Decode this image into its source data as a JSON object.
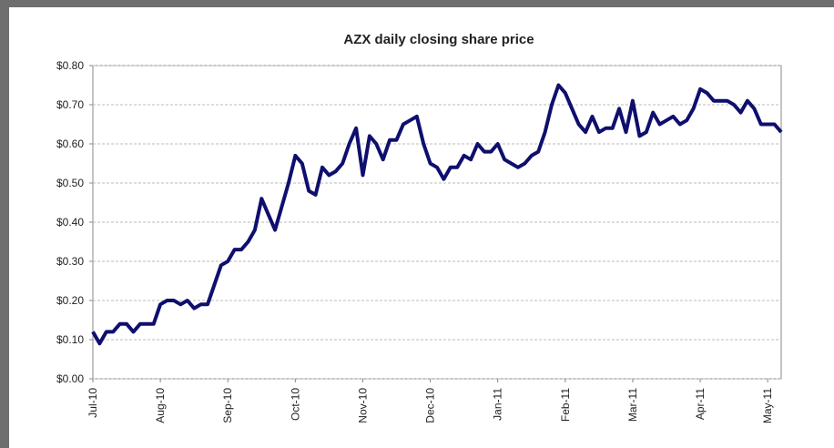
{
  "chart_data": {
    "type": "line",
    "title": "AZX daily closing share price",
    "categories": [
      "Jul-10",
      null,
      null,
      null,
      null,
      null,
      null,
      null,
      null,
      null,
      "Aug-10",
      null,
      null,
      null,
      null,
      null,
      null,
      null,
      null,
      null,
      "Sep-10",
      null,
      null,
      null,
      null,
      null,
      null,
      null,
      null,
      null,
      "Oct-10",
      null,
      null,
      null,
      null,
      null,
      null,
      null,
      null,
      null,
      "Nov-10",
      null,
      null,
      null,
      null,
      null,
      null,
      null,
      null,
      null,
      "Dec-10",
      null,
      null,
      null,
      null,
      null,
      null,
      null,
      null,
      null,
      "Jan-11",
      null,
      null,
      null,
      null,
      null,
      null,
      null,
      null,
      null,
      "Feb-11",
      null,
      null,
      null,
      null,
      null,
      null,
      null,
      null,
      null,
      "Mar-11",
      null,
      null,
      null,
      null,
      null,
      null,
      null,
      null,
      null,
      "Apr-11",
      null,
      null,
      null,
      null,
      null,
      null,
      null,
      null,
      null,
      "May-11",
      null,
      null
    ],
    "series": [
      {
        "name": "AZX",
        "color": "#0f0f6e",
        "values": [
          0.12,
          0.09,
          0.12,
          0.12,
          0.14,
          0.14,
          0.12,
          0.14,
          0.14,
          0.14,
          0.19,
          0.2,
          0.2,
          0.19,
          0.2,
          0.18,
          0.19,
          0.19,
          0.24,
          0.29,
          0.3,
          0.33,
          0.33,
          0.35,
          0.38,
          0.46,
          0.42,
          0.38,
          0.44,
          0.5,
          0.57,
          0.55,
          0.48,
          0.47,
          0.54,
          0.52,
          0.53,
          0.55,
          0.6,
          0.64,
          0.52,
          0.62,
          0.6,
          0.56,
          0.61,
          0.61,
          0.65,
          0.66,
          0.67,
          0.6,
          0.55,
          0.54,
          0.51,
          0.54,
          0.54,
          0.57,
          0.56,
          0.6,
          0.58,
          0.58,
          0.6,
          0.56,
          0.55,
          0.54,
          0.55,
          0.57,
          0.58,
          0.63,
          0.7,
          0.75,
          0.73,
          0.69,
          0.65,
          0.63,
          0.67,
          0.63,
          0.64,
          0.64,
          0.69,
          0.63,
          0.71,
          0.62,
          0.63,
          0.68,
          0.65,
          0.66,
          0.67,
          0.65,
          0.66,
          0.69,
          0.74,
          0.73,
          0.71,
          0.71,
          0.71,
          0.7,
          0.68,
          0.71,
          0.69,
          0.65,
          0.65,
          0.65,
          0.63
        ]
      }
    ],
    "ylim": [
      0,
      0.8
    ],
    "yticks": [
      {
        "value": 0,
        "label": "$0.00"
      },
      {
        "value": 0.1,
        "label": "$0.10"
      },
      {
        "value": 0.2,
        "label": "$0.20"
      },
      {
        "value": 0.3,
        "label": "$0.30"
      },
      {
        "value": 0.4,
        "label": "$0.40"
      },
      {
        "value": 0.5,
        "label": "$0.50"
      },
      {
        "value": 0.6,
        "label": "$0.60"
      },
      {
        "value": 0.7,
        "label": "$0.70"
      },
      {
        "value": 0.8,
        "label": "$0.80"
      }
    ],
    "grid": true
  }
}
